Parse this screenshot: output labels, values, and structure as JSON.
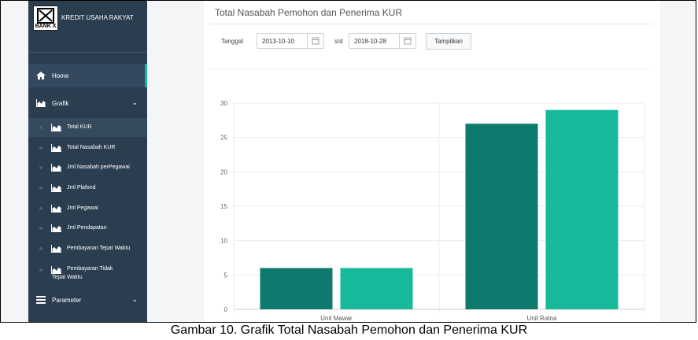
{
  "brand": {
    "logo_text": "BANK X",
    "title": "KREDIT USAHA RAKYAT"
  },
  "menu": {
    "home": "Home",
    "grafik": "Grafik",
    "grafik_items": [
      "Total KUR",
      "Total Nasabah KUR",
      "Jml Nasabah perPegawai",
      "Jml Plafond",
      "Jml Pegawai",
      "Jml Pendapatan",
      "Pembayaran Tepat Waktu",
      "Pembayaran Tidak Tepat Waktu"
    ],
    "parameter": "Parameter"
  },
  "page": {
    "title": "Total Nasabah Pemohon dan Penerima KUR",
    "filter": {
      "tanggal_label": "Tanggal",
      "start_date": "2013-10-10",
      "sd_label": "s/d",
      "end_date": "2018-10-28",
      "button": "Tampilkan"
    }
  },
  "chart_data": {
    "type": "bar",
    "categories": [
      "Unit Mawar",
      "Unit Ratna"
    ],
    "series": [
      {
        "values": [
          6,
          27
        ],
        "color": "#0e7a6d"
      },
      {
        "values": [
          6,
          29
        ],
        "color": "#16b99a"
      }
    ],
    "ylim": [
      0,
      30
    ],
    "yticks": [
      0,
      5,
      10,
      15,
      20,
      25,
      30
    ],
    "grid": true
  },
  "caption": "Gambar 10. Grafik Total Nasabah Pemohon dan Penerima KUR"
}
